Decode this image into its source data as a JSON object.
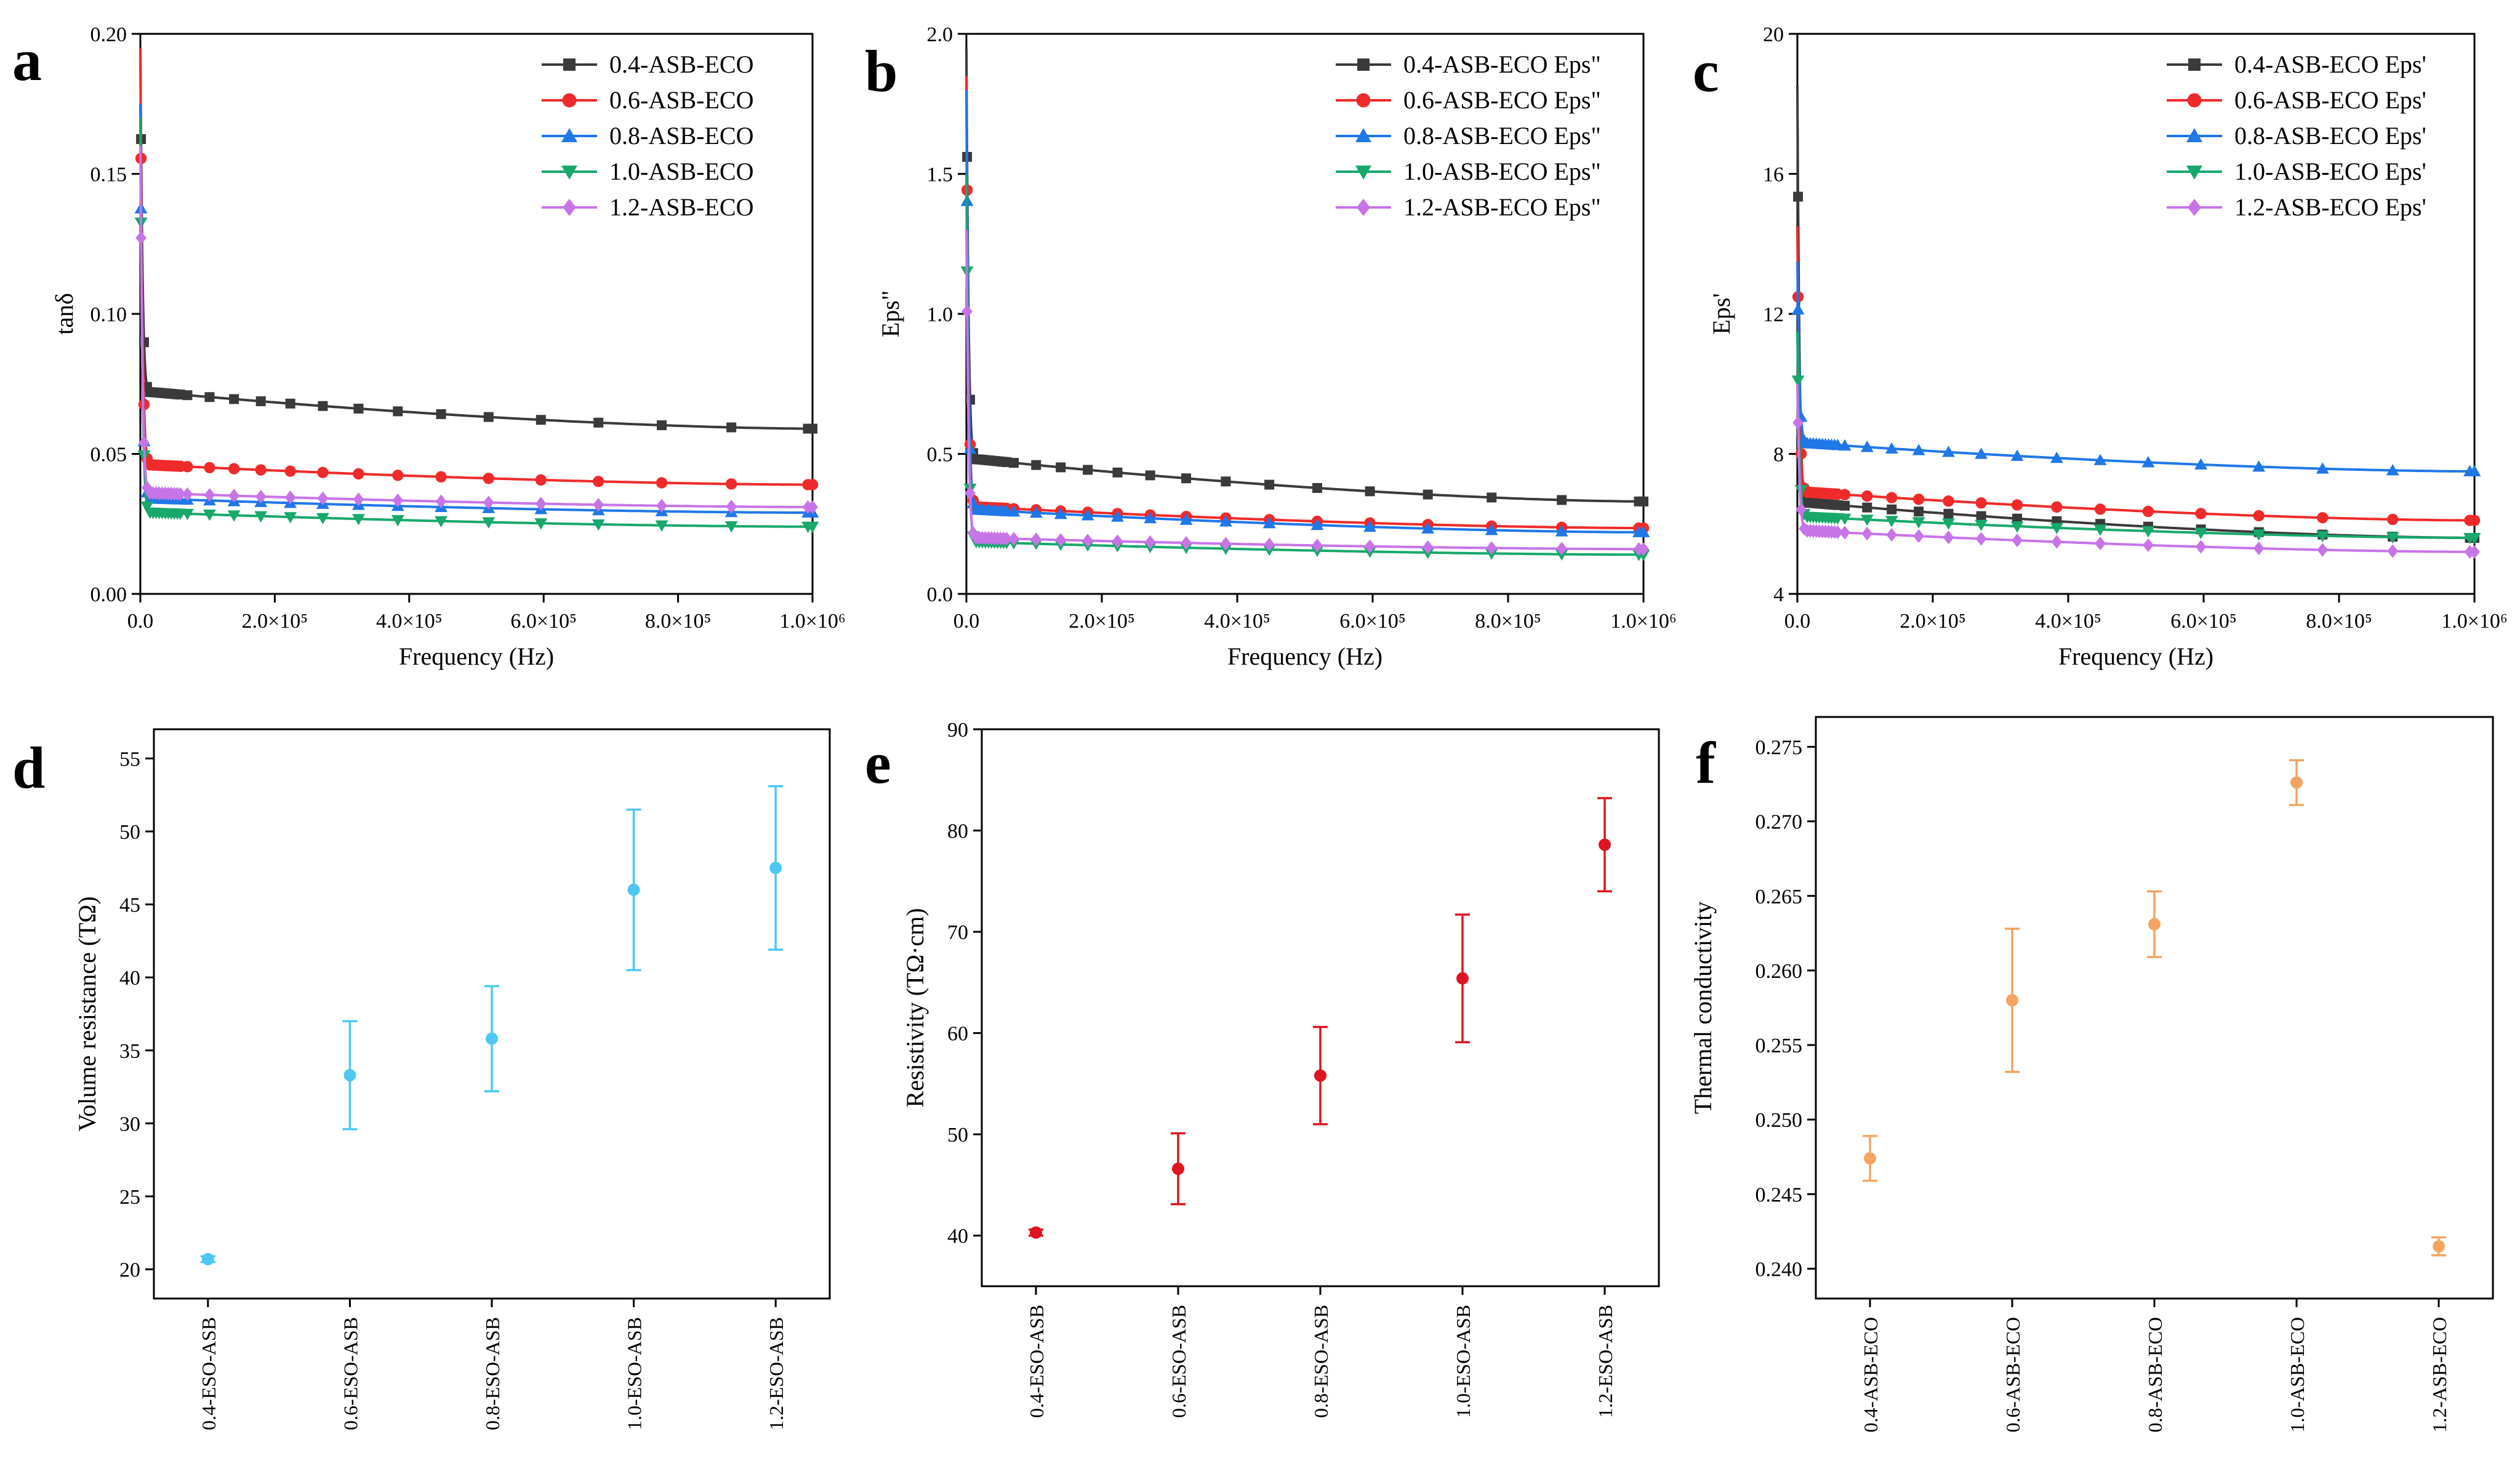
{
  "colors": {
    "black": "#3a3a3a",
    "red": "#ef2a2a",
    "blue": "#1f77e8",
    "green": "#17a86a",
    "violet": "#c774e8",
    "cyan": "#4cc8f2",
    "errred": "#e0141e",
    "orange": "#f4a460"
  },
  "chart_data": [
    {
      "id": "a",
      "panel_label": "a",
      "type": "line",
      "xlabel": "Frequency (Hz)",
      "ylabel": "tanδ",
      "xlim": [
        0,
        1000000
      ],
      "ylim": [
        0,
        0.2
      ],
      "xticks": [
        {
          "v": 0,
          "label": "0.0"
        },
        {
          "v": 200000,
          "label": "2.0×10⁵"
        },
        {
          "v": 400000,
          "label": "4.0×10⁵"
        },
        {
          "v": 600000,
          "label": "6.0×10⁵"
        },
        {
          "v": 800000,
          "label": "8.0×10⁵"
        },
        {
          "v": 1000000,
          "label": "1.0×10⁶"
        }
      ],
      "yticks": [
        {
          "v": 0,
          "label": "0.00"
        },
        {
          "v": 0.05,
          "label": "0.05"
        },
        {
          "v": 0.1,
          "label": "0.10"
        },
        {
          "v": 0.15,
          "label": "0.15"
        },
        {
          "v": 0.2,
          "label": "0.20"
        }
      ],
      "legend_position": "top-right",
      "series": [
        {
          "name": "0.4-ASB-ECO",
          "color": "#3a3a3a",
          "marker": "square",
          "v_init": 0.195,
          "v_knee": 0.072,
          "v_end": 0.059
        },
        {
          "name": "0.6-ASB-ECO",
          "color": "#ef2a2a",
          "marker": "circle",
          "v_init": 0.195,
          "v_knee": 0.046,
          "v_end": 0.039
        },
        {
          "name": "0.8-ASB-ECO",
          "color": "#1f77e8",
          "marker": "triangle-up",
          "v_init": 0.175,
          "v_knee": 0.034,
          "v_end": 0.029
        },
        {
          "name": "1.0-ASB-ECO",
          "color": "#17a86a",
          "marker": "triangle-down",
          "v_init": 0.17,
          "v_knee": 0.029,
          "v_end": 0.024
        },
        {
          "name": "1.2-ASB-ECO",
          "color": "#c774e8",
          "marker": "diamond",
          "v_init": 0.16,
          "v_knee": 0.036,
          "v_end": 0.031
        }
      ]
    },
    {
      "id": "b",
      "panel_label": "b",
      "type": "line",
      "xlabel": "Frequency (Hz)",
      "ylabel": "Eps\"",
      "xlim": [
        0,
        1000000
      ],
      "ylim": [
        0,
        2.0
      ],
      "xticks": [
        {
          "v": 0,
          "label": "0.0"
        },
        {
          "v": 200000,
          "label": "2.0×10⁵"
        },
        {
          "v": 400000,
          "label": "4.0×10⁵"
        },
        {
          "v": 600000,
          "label": "6.0×10⁵"
        },
        {
          "v": 800000,
          "label": "8.0×10⁵"
        },
        {
          "v": 1000000,
          "label": "1.0×10⁶"
        }
      ],
      "yticks": [
        {
          "v": 0,
          "label": "0.0"
        },
        {
          "v": 0.5,
          "label": "0.5"
        },
        {
          "v": 1.0,
          "label": "1.0"
        },
        {
          "v": 1.5,
          "label": "1.5"
        },
        {
          "v": 2.0,
          "label": "2.0"
        }
      ],
      "legend_position": "top-right",
      "series": [
        {
          "name": "0.4-ASB-ECO Eps\"",
          "color": "#3a3a3a",
          "marker": "square",
          "v_init": 1.95,
          "v_knee": 0.48,
          "v_end": 0.33
        },
        {
          "name": "0.6-ASB-ECO Eps\"",
          "color": "#ef2a2a",
          "marker": "circle",
          "v_init": 1.85,
          "v_knee": 0.31,
          "v_end": 0.235
        },
        {
          "name": "0.8-ASB-ECO Eps\"",
          "color": "#1f77e8",
          "marker": "triangle-up",
          "v_init": 1.8,
          "v_knee": 0.3,
          "v_end": 0.22
        },
        {
          "name": "1.0-ASB-ECO Eps\"",
          "color": "#17a86a",
          "marker": "triangle-down",
          "v_init": 1.5,
          "v_knee": 0.185,
          "v_end": 0.14
        },
        {
          "name": "1.2-ASB-ECO Eps\"",
          "color": "#c774e8",
          "marker": "diamond",
          "v_init": 1.3,
          "v_knee": 0.2,
          "v_end": 0.16
        }
      ]
    },
    {
      "id": "c",
      "panel_label": "c",
      "type": "line",
      "xlabel": "Frequency (Hz)",
      "ylabel": "Eps'",
      "xlim": [
        0,
        1000000
      ],
      "ylim": [
        4,
        20
      ],
      "xticks": [
        {
          "v": 0,
          "label": "0.0"
        },
        {
          "v": 200000,
          "label": "2.0×10⁵"
        },
        {
          "v": 400000,
          "label": "4.0×10⁵"
        },
        {
          "v": 600000,
          "label": "6.0×10⁵"
        },
        {
          "v": 800000,
          "label": "8.0×10⁵"
        },
        {
          "v": 1000000,
          "label": "1.0×10⁶"
        }
      ],
      "yticks": [
        {
          "v": 4,
          "label": "4"
        },
        {
          "v": 8,
          "label": "8"
        },
        {
          "v": 12,
          "label": "12"
        },
        {
          "v": 16,
          "label": "16"
        },
        {
          "v": 20,
          "label": "20"
        }
      ],
      "legend_position": "top-right",
      "series": [
        {
          "name": "0.4-ASB-ECO Eps'",
          "color": "#3a3a3a",
          "marker": "square",
          "v_init": 18.5,
          "v_knee": 6.6,
          "v_end": 5.6
        },
        {
          "name": "0.6-ASB-ECO Eps'",
          "color": "#ef2a2a",
          "marker": "circle",
          "v_init": 14.5,
          "v_knee": 6.9,
          "v_end": 6.1
        },
        {
          "name": "0.8-ASB-ECO Eps'",
          "color": "#1f77e8",
          "marker": "triangle-up",
          "v_init": 13.5,
          "v_knee": 8.3,
          "v_end": 7.5
        },
        {
          "name": "1.0-ASB-ECO Eps'",
          "color": "#17a86a",
          "marker": "triangle-down",
          "v_init": 11.5,
          "v_knee": 6.2,
          "v_end": 5.6
        },
        {
          "name": "1.2-ASB-ECO Eps'",
          "color": "#c774e8",
          "marker": "diamond",
          "v_init": 10.0,
          "v_knee": 5.8,
          "v_end": 5.2
        }
      ]
    },
    {
      "id": "d",
      "panel_label": "d",
      "type": "scatter",
      "xlabel": "",
      "ylabel": "Volume resistance (TΩ)",
      "ylim": [
        18,
        57
      ],
      "yticks": [
        {
          "v": 20,
          "label": "20"
        },
        {
          "v": 25,
          "label": "25"
        },
        {
          "v": 30,
          "label": "30"
        },
        {
          "v": 35,
          "label": "35"
        },
        {
          "v": 40,
          "label": "40"
        },
        {
          "v": 45,
          "label": "45"
        },
        {
          "v": 50,
          "label": "50"
        },
        {
          "v": 55,
          "label": "55"
        }
      ],
      "categories": [
        "0.4-ESO-ASB",
        "0.6-ESO-ASB",
        "0.8-ESO-ASB",
        "1.0-ESO-ASB",
        "1.2-ESO-ASB"
      ],
      "values": [
        20.7,
        33.3,
        35.8,
        46.0,
        47.5
      ],
      "errors": [
        0.2,
        3.7,
        3.6,
        5.5,
        5.6
      ],
      "color": "#4cc8f2"
    },
    {
      "id": "e",
      "panel_label": "e",
      "type": "scatter",
      "xlabel": "",
      "ylabel": "Resistivity (TΩ·cm)",
      "ylim": [
        35,
        90
      ],
      "yticks": [
        {
          "v": 40,
          "label": "40"
        },
        {
          "v": 50,
          "label": "50"
        },
        {
          "v": 60,
          "label": "60"
        },
        {
          "v": 70,
          "label": "70"
        },
        {
          "v": 80,
          "label": "80"
        },
        {
          "v": 90,
          "label": "90"
        }
      ],
      "categories": [
        "0.4-ESO-ASB",
        "0.6-ESO-ASB",
        "0.8-ESO-ASB",
        "1.0-ESO-ASB",
        "1.2-ESO-ASB"
      ],
      "values": [
        40.3,
        46.6,
        55.8,
        65.4,
        78.6
      ],
      "errors": [
        0.3,
        3.5,
        4.8,
        6.3,
        4.6
      ],
      "color": "#e0141e"
    },
    {
      "id": "f",
      "panel_label": "f",
      "type": "scatter",
      "xlabel": "",
      "ylabel": "Thermal conductivity",
      "ylim": [
        0.238,
        0.277
      ],
      "yticks": [
        {
          "v": 0.24,
          "label": "0.240"
        },
        {
          "v": 0.245,
          "label": "0.245"
        },
        {
          "v": 0.25,
          "label": "0.250"
        },
        {
          "v": 0.255,
          "label": "0.255"
        },
        {
          "v": 0.26,
          "label": "0.260"
        },
        {
          "v": 0.265,
          "label": "0.265"
        },
        {
          "v": 0.27,
          "label": "0.270"
        },
        {
          "v": 0.275,
          "label": "0.275"
        }
      ],
      "categories": [
        "0.4-ASB-ECO",
        "0.6-ASB-ECO",
        "0.8-ASB-ECO",
        "1.0-ASB-ECO",
        "1.2-ASB-ECO"
      ],
      "values": [
        0.2474,
        0.258,
        0.2631,
        0.2726,
        0.2415
      ],
      "errors": [
        0.0015,
        0.0048,
        0.0022,
        0.0015,
        0.0006
      ],
      "color": "#f4a460"
    }
  ]
}
